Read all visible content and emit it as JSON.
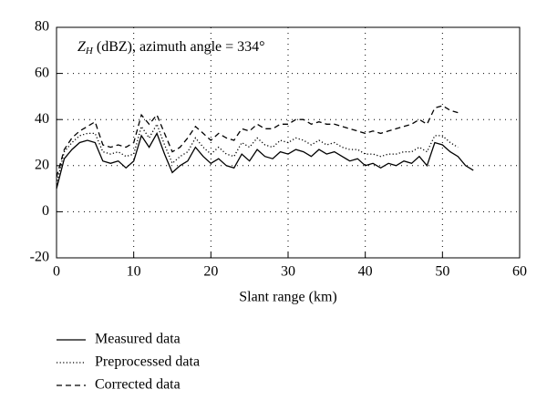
{
  "chart_data": {
    "type": "line",
    "annotation": {
      "symbol": "Z",
      "subscript": "H",
      "text": " (dBZ), azimuth angle = 334°"
    },
    "xlabel": "Slant range (km)",
    "xlim": [
      0,
      60
    ],
    "xticks": [
      0,
      10,
      20,
      30,
      40,
      50,
      60
    ],
    "ylim": [
      -20,
      80
    ],
    "yticks": [
      -20,
      0,
      20,
      40,
      60,
      80
    ],
    "grid": true,
    "legend": "bottom",
    "series": [
      {
        "name": "Measured data",
        "color": "#000000",
        "dash": "solid",
        "x": [
          0,
          1,
          2,
          3,
          4,
          5,
          6,
          7,
          8,
          9,
          10,
          11,
          12,
          13,
          14,
          15,
          16,
          17,
          18,
          19,
          20,
          21,
          22,
          23,
          24,
          25,
          26,
          27,
          28,
          29,
          30,
          31,
          32,
          33,
          34,
          35,
          36,
          37,
          38,
          39,
          40,
          41,
          42,
          43,
          44,
          45,
          46,
          47,
          48,
          49,
          50,
          51,
          52,
          53,
          54
        ],
        "values": [
          10,
          23,
          27,
          30,
          31,
          30,
          22,
          21,
          22,
          19,
          22,
          33,
          28,
          34,
          25,
          17,
          20,
          22,
          28,
          24,
          21,
          23,
          20,
          19,
          25,
          22,
          27,
          24,
          23,
          26,
          25,
          27,
          26,
          24,
          27,
          25,
          26,
          24,
          22,
          23,
          20,
          21,
          19,
          21,
          20,
          22,
          21,
          24,
          20,
          30,
          29,
          26,
          24,
          20,
          18
        ]
      },
      {
        "name": "Preprocessed data",
        "color": "#000000",
        "dash": "dotted",
        "x": [
          0,
          1,
          2,
          3,
          4,
          5,
          6,
          7,
          8,
          9,
          10,
          11,
          12,
          13,
          14,
          15,
          16,
          17,
          18,
          19,
          20,
          21,
          22,
          23,
          24,
          25,
          26,
          27,
          28,
          29,
          30,
          31,
          32,
          33,
          34,
          35,
          36,
          37,
          38,
          39,
          40,
          41,
          42,
          43,
          44,
          45,
          46,
          47,
          48,
          49,
          50,
          51,
          52
        ],
        "values": [
          12,
          26,
          30,
          33,
          34,
          34,
          26,
          25,
          26,
          24,
          25,
          37,
          32,
          38,
          29,
          21,
          24,
          26,
          32,
          28,
          25,
          28,
          25,
          24,
          30,
          28,
          32,
          29,
          28,
          31,
          30,
          32,
          31,
          29,
          31,
          29,
          30,
          28,
          27,
          27,
          25,
          25,
          24,
          25,
          25,
          26,
          26,
          28,
          26,
          33,
          33,
          30,
          28
        ]
      },
      {
        "name": "Corrected data",
        "color": "#000000",
        "dash": "dashed",
        "x": [
          0,
          1,
          2,
          3,
          4,
          5,
          6,
          7,
          8,
          9,
          10,
          11,
          12,
          13,
          14,
          15,
          16,
          17,
          18,
          19,
          20,
          21,
          22,
          23,
          24,
          25,
          26,
          27,
          28,
          29,
          30,
          31,
          32,
          33,
          34,
          35,
          36,
          37,
          38,
          39,
          40,
          41,
          42,
          43,
          44,
          45,
          46,
          47,
          48,
          49,
          50,
          51,
          52
        ],
        "values": [
          15,
          27,
          32,
          35,
          37,
          39,
          29,
          28,
          29,
          28,
          30,
          42,
          38,
          42,
          34,
          26,
          28,
          32,
          37,
          34,
          31,
          34,
          32,
          31,
          36,
          35,
          38,
          36,
          36,
          38,
          38,
          40,
          40,
          38,
          39,
          38,
          38,
          37,
          36,
          35,
          34,
          35,
          34,
          35,
          36,
          37,
          38,
          40,
          38,
          45,
          46,
          44,
          43
        ]
      }
    ]
  }
}
